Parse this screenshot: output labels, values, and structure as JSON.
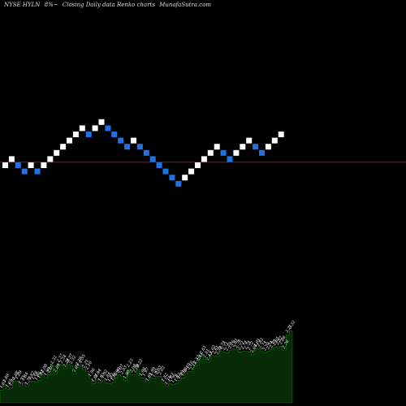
{
  "header": {
    "symbol": "NYSE HYLN",
    "change": "8%~",
    "description": "Closing Daily data Renko charts",
    "source": "MunafaSutra.com"
  },
  "colors": {
    "background": "#000000",
    "up_brick": "#ffffff",
    "down_brick": "#1f72e6",
    "reference_line": "#8b1a1a",
    "volume_fill": "#072a07",
    "volume_stroke": "#0a7a0a"
  },
  "chart_data": [
    {
      "type": "renko",
      "brick_size": 1,
      "levels": [
        0,
        1,
        0,
        -1,
        0,
        -1,
        0,
        1,
        2,
        3,
        4,
        5,
        6,
        5,
        6,
        7,
        6,
        5,
        4,
        3,
        4,
        3,
        2,
        1,
        0,
        -1,
        -2,
        -3,
        -2,
        -1,
        0,
        1,
        2,
        3,
        2,
        1,
        2,
        3,
        4,
        3,
        2,
        3,
        4,
        5
      ],
      "reference_level": 0.5
    },
    {
      "type": "area",
      "labels": [
        "1.63",
        "1.80",
        "1.65",
        "1.70",
        "1.88",
        "1.89",
        "1.75",
        "1.84",
        "1.73",
        "1.87",
        "1.88",
        "1.86",
        "1.91",
        "2.08",
        "1.99",
        "2.07",
        "2.32",
        "2.09",
        "2.37",
        "2.34",
        "2.24",
        "2.37",
        "2.32",
        "2.09",
        "2.28",
        "2.35",
        "2.21",
        "2.16",
        "1.96",
        "1.81",
        "1.94",
        "1.83",
        "1.92",
        "1.84",
        "1.82",
        "1.85",
        "1.98",
        "2.07",
        "2.03",
        "1.90",
        "2.23",
        "2.08",
        "2.08",
        "2.22",
        "1.98",
        "1.97",
        "1.83",
        "1.99",
        "1.95",
        "2.03",
        "2.02",
        "1.82",
        "1.74",
        "1.82",
        "1.79",
        "1.82",
        "1.90",
        "1.98",
        "2.10",
        "2.16",
        "2.15",
        "2.33",
        "2.41",
        "2.61",
        "2.51",
        "2.43",
        "2.62",
        "2.61",
        "2.59",
        "2.74",
        "2.71",
        "2.70",
        "2.76",
        "2.81",
        "2.78",
        "2.72",
        "2.74",
        "2.74",
        "2.72",
        "2.64",
        "2.81",
        "2.82",
        "2.74",
        "2.70",
        "2.74",
        "2.78",
        "2.85",
        "2.87",
        "2.88",
        "2.76",
        "3.21",
        "3.32"
      ],
      "values": [
        1.63,
        1.8,
        1.65,
        1.7,
        1.88,
        1.89,
        1.75,
        1.84,
        1.73,
        1.87,
        1.88,
        1.86,
        1.91,
        2.08,
        1.99,
        2.07,
        2.32,
        2.09,
        2.37,
        2.34,
        2.24,
        2.37,
        2.32,
        2.09,
        2.28,
        2.35,
        2.21,
        2.16,
        1.96,
        1.81,
        1.94,
        1.83,
        1.92,
        1.84,
        1.82,
        1.85,
        1.98,
        2.07,
        2.03,
        1.9,
        2.23,
        2.08,
        2.08,
        2.22,
        1.98,
        1.97,
        1.83,
        1.99,
        1.95,
        2.03,
        2.02,
        1.82,
        1.74,
        1.82,
        1.79,
        1.82,
        1.9,
        1.98,
        2.1,
        2.16,
        2.15,
        2.33,
        2.41,
        2.61,
        2.51,
        2.43,
        2.62,
        2.61,
        2.59,
        2.74,
        2.71,
        2.7,
        2.76,
        2.81,
        2.78,
        2.72,
        2.74,
        2.74,
        2.72,
        2.64,
        2.81,
        2.82,
        2.74,
        2.7,
        2.74,
        2.78,
        2.85,
        2.87,
        2.88,
        2.76,
        3.21,
        3.32
      ]
    }
  ]
}
